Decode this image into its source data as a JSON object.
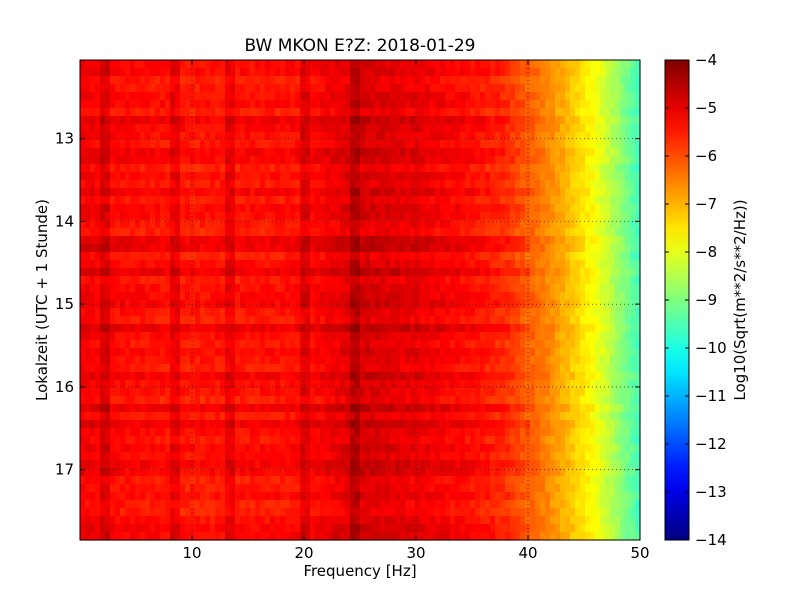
{
  "chart_data": {
    "type": "heatmap",
    "title": "BW MKON E?Z: 2018-01-29",
    "xlabel": "Frequency [Hz]",
    "ylabel": "Lokalzeit (UTC + 1 Stunde)",
    "xlim": [
      0,
      50
    ],
    "ylim": [
      12.05,
      17.85
    ],
    "y_inverted": true,
    "x_ticks": [
      10,
      20,
      30,
      40,
      50
    ],
    "y_ticks": [
      13,
      14,
      15,
      16,
      17
    ],
    "grid": true,
    "colormap": "jet",
    "colorbar": {
      "label": "Log10(Sqrt(m**2/s**2/Hz))",
      "range": [
        -14,
        -4
      ],
      "ticks": [
        -4,
        -5,
        -6,
        -7,
        -8,
        -9,
        -10,
        -11,
        -12,
        -13,
        -14
      ]
    },
    "spectrum_profile": {
      "frequency_hz": [
        0,
        5,
        10,
        15,
        20,
        22,
        25,
        30,
        35,
        38,
        40,
        42,
        44,
        46,
        48,
        50
      ],
      "log10_amplitude": [
        -5.1,
        -5.3,
        -5.4,
        -5.35,
        -5.3,
        -5.1,
        -4.8,
        -5.0,
        -5.3,
        -5.6,
        -6.1,
        -6.6,
        -7.2,
        -7.8,
        -8.7,
        -9.6
      ]
    },
    "narrowband_lines_hz": [
      2.2,
      8.6,
      13.6,
      20.2,
      24.7
    ],
    "notes_visible": []
  }
}
